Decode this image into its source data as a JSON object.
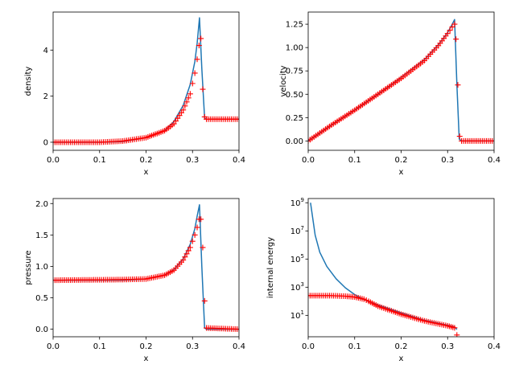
{
  "figure": {
    "background": "#ffffff"
  },
  "chart_data": [
    {
      "id": "density",
      "type": "line",
      "xlabel": "x",
      "ylabel": "density",
      "xlim": [
        0,
        0.4
      ],
      "ylim": [
        -0.35,
        5.65
      ],
      "xticks": [
        0,
        0.1,
        0.2,
        0.3,
        0.4
      ],
      "xtick_labels": [
        "0.0",
        "0.1",
        "0.2",
        "0.3",
        "0.4"
      ],
      "yticks": [
        0,
        2,
        4
      ],
      "ytick_labels": [
        "0",
        "2",
        "4"
      ],
      "series": [
        {
          "style": "solid line",
          "color": "#1f77b4",
          "x": [
            0.0,
            0.1,
            0.15,
            0.2,
            0.24,
            0.26,
            0.28,
            0.295,
            0.305,
            0.31,
            0.315,
            0.32,
            0.326,
            0.33,
            0.4
          ],
          "y": [
            0.0,
            0.0,
            0.03,
            0.2,
            0.5,
            0.9,
            1.6,
            2.5,
            3.5,
            4.3,
            5.4,
            3.2,
            1.05,
            1.0,
            1.0
          ]
        },
        {
          "style": "plus markers",
          "color": "#ff0000",
          "x": [
            0.0,
            0.1,
            0.15,
            0.2,
            0.24,
            0.26,
            0.28,
            0.295,
            0.305,
            0.31,
            0.314,
            0.318,
            0.322,
            0.326,
            0.33,
            0.4
          ],
          "y": [
            0.0,
            0.0,
            0.05,
            0.2,
            0.5,
            0.8,
            1.4,
            2.1,
            3.0,
            3.6,
            4.2,
            4.5,
            2.3,
            1.1,
            1.0,
            1.0
          ]
        }
      ]
    },
    {
      "id": "velocity",
      "type": "line",
      "xlabel": "x",
      "ylabel": "velocity",
      "xlim": [
        0,
        0.4
      ],
      "ylim": [
        -0.1,
        1.38
      ],
      "xticks": [
        0,
        0.1,
        0.2,
        0.3,
        0.4
      ],
      "xtick_labels": [
        "0.0",
        "0.1",
        "0.2",
        "0.3",
        "0.4"
      ],
      "yticks": [
        0,
        0.25,
        0.5,
        0.75,
        1.0,
        1.25
      ],
      "ytick_labels": [
        "0.00",
        "0.25",
        "0.50",
        "0.75",
        "1.00",
        "1.25"
      ],
      "series": [
        {
          "style": "solid line",
          "color": "#1f77b4",
          "x": [
            0.0,
            0.05,
            0.1,
            0.15,
            0.2,
            0.25,
            0.28,
            0.3,
            0.31,
            0.315,
            0.32,
            0.325,
            0.33,
            0.4
          ],
          "y": [
            0.0,
            0.17,
            0.33,
            0.5,
            0.68,
            0.87,
            1.03,
            1.16,
            1.25,
            1.3,
            0.6,
            0.02,
            0.0,
            0.0
          ]
        },
        {
          "style": "plus markers",
          "color": "#ff0000",
          "x": [
            0.0,
            0.05,
            0.1,
            0.15,
            0.2,
            0.25,
            0.28,
            0.3,
            0.31,
            0.315,
            0.318,
            0.322,
            0.326,
            0.33,
            0.4
          ],
          "y": [
            0.0,
            0.17,
            0.33,
            0.5,
            0.67,
            0.86,
            1.02,
            1.15,
            1.22,
            1.25,
            1.09,
            0.6,
            0.05,
            0.0,
            0.0
          ]
        }
      ]
    },
    {
      "id": "pressure",
      "type": "line",
      "xlabel": "x",
      "ylabel": "pressure",
      "xlim": [
        0,
        0.4
      ],
      "ylim": [
        -0.12,
        2.08
      ],
      "xticks": [
        0,
        0.1,
        0.2,
        0.3,
        0.4
      ],
      "xtick_labels": [
        "0.0",
        "0.1",
        "0.2",
        "0.3",
        "0.4"
      ],
      "yticks": [
        0,
        0.5,
        1.0,
        1.5,
        2.0
      ],
      "ytick_labels": [
        "0.0",
        "0.5",
        "1.0",
        "1.5",
        "2.0"
      ],
      "series": [
        {
          "style": "solid line",
          "color": "#1f77b4",
          "x": [
            0.0,
            0.15,
            0.2,
            0.24,
            0.26,
            0.28,
            0.295,
            0.305,
            0.31,
            0.315,
            0.32,
            0.326,
            0.33,
            0.4
          ],
          "y": [
            0.78,
            0.78,
            0.8,
            0.86,
            0.95,
            1.12,
            1.35,
            1.6,
            1.8,
            1.98,
            1.0,
            0.02,
            0.0,
            0.0
          ]
        },
        {
          "style": "plus markers",
          "color": "#ff0000",
          "x": [
            0.0,
            0.15,
            0.2,
            0.24,
            0.26,
            0.28,
            0.295,
            0.305,
            0.31,
            0.314,
            0.318,
            0.322,
            0.326,
            0.33,
            0.4
          ],
          "y": [
            0.78,
            0.79,
            0.8,
            0.86,
            0.94,
            1.1,
            1.3,
            1.5,
            1.62,
            1.75,
            1.75,
            1.3,
            0.45,
            0.02,
            0.0
          ]
        }
      ]
    },
    {
      "id": "internal-energy",
      "type": "line",
      "xlabel": "x",
      "ylabel": "internal energy",
      "yscale": "log",
      "xlim": [
        0,
        0.4
      ],
      "ylim": [
        0.3,
        2000000000
      ],
      "xticks": [
        0,
        0.1,
        0.2,
        0.3,
        0.4
      ],
      "xtick_labels": [
        "0.0",
        "0.1",
        "0.2",
        "0.3",
        "0.4"
      ],
      "yticks": [
        10,
        1000,
        100000,
        10000000,
        1000000000
      ],
      "ytick_base": "10",
      "ytick_exponents": [
        "1",
        "3",
        "5",
        "7",
        "9"
      ],
      "series": [
        {
          "style": "solid line",
          "color": "#1f77b4",
          "x": [
            0.005,
            0.015,
            0.025,
            0.04,
            0.06,
            0.08,
            0.1,
            0.12,
            0.15,
            0.2,
            0.25,
            0.3,
            0.315,
            0.32
          ],
          "y": [
            1000000000,
            5000000,
            300000,
            30000,
            4000,
            900,
            300,
            130,
            55,
            15,
            4.5,
            2.0,
            1.5,
            1.0
          ]
        },
        {
          "style": "plus markers",
          "color": "#ff0000",
          "x": [
            0.0,
            0.05,
            0.08,
            0.1,
            0.12,
            0.13,
            0.15,
            0.2,
            0.25,
            0.3,
            0.315,
            0.32
          ],
          "y": [
            250,
            250,
            230,
            200,
            140,
            100,
            45,
            12,
            4,
            1.8,
            1.3,
            0.4
          ]
        }
      ]
    }
  ]
}
